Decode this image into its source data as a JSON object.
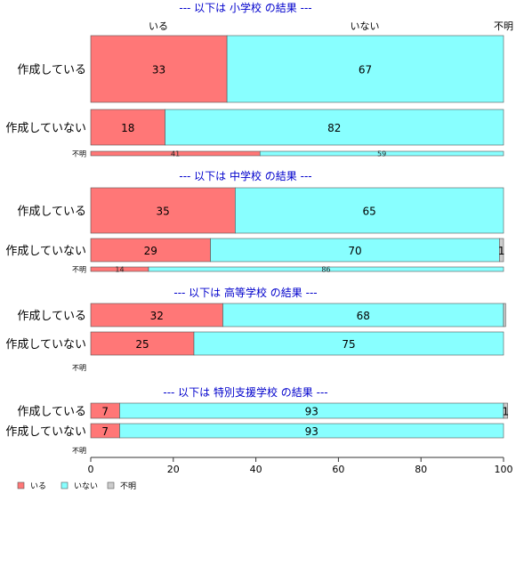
{
  "chart_data": {
    "type": "bar",
    "orientation": "horizontal",
    "stacked": "percent",
    "xlim": [
      0,
      100
    ],
    "x_ticks": [
      "0",
      "20",
      "40",
      "60",
      "80",
      "100"
    ],
    "top_categories": [
      "いる",
      "いない",
      "不明"
    ],
    "legend": {
      "placement": "bottom-left",
      "items": [
        {
          "label": "いる",
          "color": "#ff7777"
        },
        {
          "label": "いない",
          "color": "#88ffff"
        },
        {
          "label": "不明",
          "color": "#cccccc"
        }
      ]
    },
    "panels": [
      {
        "title": "--- 以下は 小学校 の結果 ---",
        "rows": [
          {
            "label": "作成している",
            "values": [
              33,
              67,
              0
            ],
            "value_labels": [
              "33",
              "67",
              ""
            ]
          },
          {
            "label": "作成していない",
            "values": [
              18,
              82,
              0
            ],
            "value_labels": [
              "18",
              "82",
              ""
            ]
          },
          {
            "label": "不明",
            "values": [
              41,
              59,
              0
            ],
            "value_labels": [
              "41",
              "59",
              ""
            ]
          }
        ]
      },
      {
        "title": "--- 以下は 中学校 の結果 ---",
        "rows": [
          {
            "label": "作成している",
            "values": [
              35,
              65,
              0
            ],
            "value_labels": [
              "35",
              "65",
              ""
            ]
          },
          {
            "label": "作成していない",
            "values": [
              29,
              70,
              1
            ],
            "value_labels": [
              "29",
              "70",
              "1"
            ]
          },
          {
            "label": "不明",
            "values": [
              14,
              86,
              0
            ],
            "value_labels": [
              "14",
              "86",
              ""
            ]
          }
        ]
      },
      {
        "title": "--- 以下は 高等学校 の結果 ---",
        "rows": [
          {
            "label": "作成している",
            "values": [
              32,
              68,
              0.5
            ],
            "value_labels": [
              "32",
              "68",
              ""
            ]
          },
          {
            "label": "作成していない",
            "values": [
              25,
              75,
              0
            ],
            "value_labels": [
              "25",
              "75",
              ""
            ]
          },
          {
            "label": "不明",
            "values": [
              0,
              0,
              0
            ],
            "value_labels": [
              "",
              "",
              ""
            ]
          }
        ]
      },
      {
        "title": "--- 以下は 特別支援学校 の結果 ---",
        "rows": [
          {
            "label": "作成している",
            "values": [
              7,
              93,
              1
            ],
            "value_labels": [
              "7",
              "93",
              "1"
            ]
          },
          {
            "label": "作成していない",
            "values": [
              7,
              93,
              0
            ],
            "value_labels": [
              "7",
              "93",
              ""
            ]
          },
          {
            "label": "不明",
            "values": [
              0,
              0,
              0
            ],
            "value_labels": [
              "",
              "",
              ""
            ]
          }
        ]
      }
    ]
  }
}
